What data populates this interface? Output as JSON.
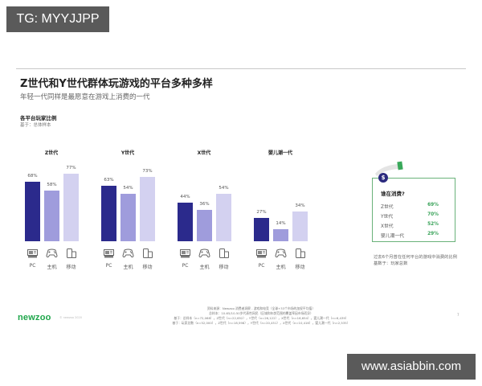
{
  "watermarks": {
    "top": "TG: MYYJJPP",
    "bottom": "www.asiabbin.com"
  },
  "header": {
    "title": "Z世代和Y世代群体玩游戏的平台多种多样",
    "subtitle": "年轻一代同样是最愿意在游戏上消费的一代"
  },
  "section": {
    "title": "各平台玩家比例",
    "base": "基于：总体样本"
  },
  "colors": {
    "pc": "#2b2a8c",
    "console": "#9f9cdc",
    "mobile": "#d3d1f0",
    "accent_green": "#3aa35a",
    "card_border": "#6ab27a",
    "logo_green": "#1ea64a"
  },
  "icons": {
    "pc": "pc-monitor-icon",
    "console": "gamepad-icon",
    "mobile": "mobile-tablet-icon",
    "badge": "dollar-coin-icon"
  },
  "chart_data": {
    "type": "bar",
    "title": "各平台玩家比例",
    "subtitle": "基于：总体样本",
    "categories": [
      "PC",
      "主机",
      "移动"
    ],
    "groups": [
      "Z世代",
      "Y世代",
      "X世代",
      "婴儿潮一代"
    ],
    "series": [
      {
        "name": "Z世代",
        "values": [
          68,
          58,
          77
        ],
        "labels": [
          "68%",
          "58%",
          "77%"
        ]
      },
      {
        "name": "Y世代",
        "values": [
          63,
          54,
          73
        ],
        "labels": [
          "63%",
          "54%",
          "73%"
        ]
      },
      {
        "name": "X世代",
        "values": [
          44,
          36,
          54
        ],
        "labels": [
          "44%",
          "36%",
          "54%"
        ]
      },
      {
        "name": "婴儿潮一代",
        "values": [
          27,
          14,
          34
        ],
        "labels": [
          "27%",
          "14%",
          "34%"
        ]
      }
    ],
    "xlabel": "",
    "ylabel": "",
    "ylim": [
      0,
      100
    ],
    "grid": false,
    "legend": "none"
  },
  "spending_card": {
    "title": "谁在消费?",
    "rows": [
      {
        "label": "Z世代",
        "value": "69%"
      },
      {
        "label": "Y世代",
        "value": "70%"
      },
      {
        "label": "X世代",
        "value": "52%"
      },
      {
        "label": "婴儿潮一代",
        "value": "29%"
      }
    ],
    "note_line1": "过去6个月曾在任何平台的游戏中消费的比例",
    "note_line2": "基数于：玩家总数"
  },
  "footer": {
    "logo": "newzoo",
    "logo_sub": "© newzoo 2020",
    "source_line1": "资料来源：Newzoo 消费者洞察 - 游戏和电竞（全球+33个市场的加权平均值）",
    "source_line2": "总样本：10-65/10-50岁代表性网民（区域和年龄范围的覆盖率因市场而异）",
    "source_line3": "基于：总样本（n=72,068），Z世代（n=22,652），Y世代（n=26,122），X世代（n=16,654），婴儿潮一代（n=6,439）",
    "source_line4": "基于：玩家总数（n=52,000），Z世代（n=18,598），Y世代（n=20,451），X世代（n=10,416），婴儿潮一代（n=2,535）",
    "page": "7"
  }
}
